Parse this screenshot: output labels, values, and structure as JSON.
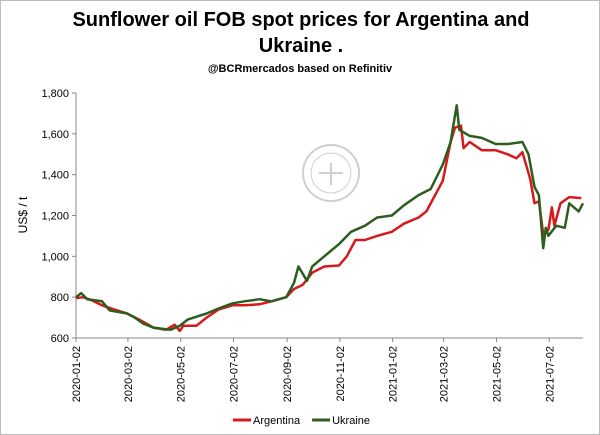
{
  "chart_data": {
    "type": "line",
    "title": "Sunflower oil FOB spot prices for Argentina and Ukraine .",
    "subtitle": "@BCRmercados based on Refinitiv",
    "y_label": "US$ / t",
    "xlim": [
      "2020-01-02",
      "2021-08-10"
    ],
    "xticks": [
      "2020-01-02",
      "2020-03-02",
      "2020-05-02",
      "2020-07-02",
      "2020-09-02",
      "2020-11-02",
      "2021-01-02",
      "2021-03-02",
      "2021-05-02",
      "2021-07-02"
    ],
    "ylim": [
      600,
      1800
    ],
    "yticks": [
      600,
      800,
      {
        "value": 1000,
        "label": "1,000"
      },
      {
        "value": 1200,
        "label": "1,200"
      },
      {
        "value": 1400,
        "label": "1,400"
      },
      {
        "value": 1600,
        "label": "1,600"
      },
      {
        "value": 1800,
        "label": "1,800"
      }
    ],
    "grid": false,
    "legend": "bottom",
    "series": [
      {
        "name": "Argentina",
        "color": "#d7191c",
        "x": [
          "2020-01-02",
          "2020-01-10",
          "2020-01-20",
          "2020-02-01",
          "2020-02-15",
          "2020-03-01",
          "2020-03-15",
          "2020-04-01",
          "2020-04-15",
          "2020-04-25",
          "2020-05-01",
          "2020-05-05",
          "2020-05-20",
          "2020-06-01",
          "2020-06-15",
          "2020-07-01",
          "2020-07-15",
          "2020-08-01",
          "2020-08-15",
          "2020-09-01",
          "2020-09-10",
          "2020-09-20",
          "2020-10-01",
          "2020-10-15",
          "2020-11-01",
          "2020-11-10",
          "2020-11-20",
          "2020-12-01",
          "2020-12-15",
          "2021-01-01",
          "2021-01-15",
          "2021-02-01",
          "2021-02-10",
          "2021-02-20",
          "2021-03-01",
          "2021-03-10",
          "2021-03-15",
          "2021-03-22",
          "2021-03-25",
          "2021-04-01",
          "2021-04-15",
          "2021-05-01",
          "2021-05-15",
          "2021-05-25",
          "2021-06-01",
          "2021-06-10",
          "2021-06-15",
          "2021-06-20",
          "2021-06-25",
          "2021-07-01",
          "2021-07-05",
          "2021-07-08",
          "2021-07-15",
          "2021-07-25",
          "2021-08-08"
        ],
        "values": [
          795,
          800,
          785,
          760,
          740,
          720,
          690,
          650,
          640,
          665,
          635,
          660,
          660,
          700,
          740,
          760,
          760,
          765,
          780,
          800,
          840,
          860,
          920,
          950,
          955,
          1000,
          1080,
          1080,
          1100,
          1120,
          1160,
          1190,
          1220,
          1300,
          1370,
          1560,
          1630,
          1640,
          1530,
          1560,
          1520,
          1520,
          1500,
          1480,
          1510,
          1380,
          1260,
          1270,
          1110,
          1130,
          1240,
          1150,
          1260,
          1290,
          1285
        ]
      },
      {
        "name": "Ukraine",
        "color": "#2d5e1e",
        "x": [
          "2020-01-02",
          "2020-01-08",
          "2020-01-15",
          "2020-02-01",
          "2020-02-10",
          "2020-03-01",
          "2020-03-10",
          "2020-03-20",
          "2020-04-01",
          "2020-04-20",
          "2020-05-01",
          "2020-05-10",
          "2020-06-01",
          "2020-06-15",
          "2020-07-01",
          "2020-07-15",
          "2020-08-01",
          "2020-08-15",
          "2020-09-01",
          "2020-09-10",
          "2020-09-15",
          "2020-09-25",
          "2020-10-01",
          "2020-10-15",
          "2020-11-01",
          "2020-11-15",
          "2020-12-01",
          "2020-12-15",
          "2021-01-01",
          "2021-01-15",
          "2021-02-01",
          "2021-02-15",
          "2021-03-01",
          "2021-03-10",
          "2021-03-17",
          "2021-03-20",
          "2021-04-01",
          "2021-04-15",
          "2021-05-01",
          "2021-05-15",
          "2021-06-01",
          "2021-06-08",
          "2021-06-15",
          "2021-06-20",
          "2021-06-25",
          "2021-06-28",
          "2021-07-01",
          "2021-07-10",
          "2021-07-20",
          "2021-07-25",
          "2021-08-05",
          "2021-08-10"
        ],
        "values": [
          800,
          820,
          790,
          780,
          735,
          720,
          700,
          670,
          650,
          640,
          660,
          690,
          720,
          745,
          770,
          780,
          790,
          780,
          800,
          870,
          950,
          880,
          950,
          1000,
          1060,
          1120,
          1150,
          1190,
          1200,
          1250,
          1300,
          1330,
          1450,
          1560,
          1740,
          1620,
          1590,
          1580,
          1550,
          1550,
          1560,
          1500,
          1340,
          1300,
          1040,
          1140,
          1100,
          1150,
          1140,
          1260,
          1220,
          1260
        ]
      }
    ]
  }
}
